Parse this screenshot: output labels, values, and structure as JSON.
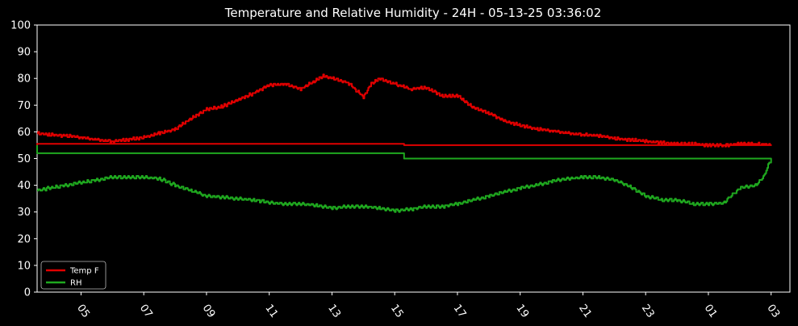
{
  "chart_data": {
    "type": "line",
    "title": "Temperature and Relative Humidity - 24H - 05-13-25 03:36:02",
    "xlabel": "",
    "ylabel": "",
    "ylim": [
      0,
      100
    ],
    "xlim": [
      "05-12-25 03:36",
      "05-13-25 03:36"
    ],
    "x_unit": "time of day (hours)",
    "yticks": [
      0,
      10,
      20,
      30,
      40,
      50,
      60,
      70,
      80,
      90,
      100
    ],
    "xticks": [
      "05",
      "07",
      "09",
      "11",
      "13",
      "15",
      "17",
      "19",
      "21",
      "23",
      "01",
      "03"
    ],
    "xtick_times": [
      "05:00",
      "07:00",
      "09:00",
      "11:00",
      "13:00",
      "15:00",
      "17:00",
      "19:00",
      "21:00",
      "23:00",
      "01:00",
      "03:00"
    ],
    "grid": true,
    "legend_position": "bottom-left",
    "background": "#000000",
    "series": [
      {
        "name": "Temp F",
        "color": "#e00000",
        "x": [
          "03:36",
          "04:00",
          "04:30",
          "05:00",
          "05:30",
          "06:00",
          "06:30",
          "07:00",
          "07:30",
          "08:00",
          "08:30",
          "09:00",
          "09:30",
          "10:00",
          "10:30",
          "11:00",
          "11:30",
          "12:00",
          "12:30",
          "12:45",
          "13:00",
          "13:30",
          "14:00",
          "14:15",
          "14:30",
          "15:00",
          "15:30",
          "16:00",
          "16:30",
          "17:00",
          "17:30",
          "18:00",
          "18:30",
          "19:00",
          "19:30",
          "20:00",
          "20:30",
          "21:00",
          "21:30",
          "22:00",
          "22:30",
          "23:00",
          "23:30",
          "00:00",
          "00:30",
          "01:00",
          "01:30",
          "02:00",
          "02:30",
          "03:00",
          "03:36"
        ],
        "y": [
          59.5,
          59,
          58.5,
          58,
          57,
          56.5,
          57,
          58,
          59.5,
          61,
          65,
          68.5,
          69.5,
          72,
          74.5,
          77.5,
          78,
          76,
          79.5,
          81,
          80,
          78.5,
          73,
          78,
          80,
          78,
          76,
          76.5,
          73.5,
          73.5,
          69,
          67,
          64,
          62.5,
          61,
          60.5,
          59.5,
          59,
          58.5,
          57.5,
          57,
          56.5,
          56,
          55.5,
          55.5,
          55,
          55,
          55.5,
          55.5,
          55,
          55
        ]
      },
      {
        "name": "RH",
        "color": "#1fa81f",
        "x": [
          "03:36",
          "04:00",
          "04:30",
          "05:00",
          "05:30",
          "06:00",
          "06:30",
          "07:00",
          "07:30",
          "08:00",
          "08:30",
          "09:00",
          "09:30",
          "10:00",
          "10:30",
          "11:00",
          "11:30",
          "12:00",
          "12:30",
          "13:00",
          "13:30",
          "14:00",
          "14:30",
          "15:00",
          "15:30",
          "16:00",
          "16:30",
          "17:00",
          "17:30",
          "18:00",
          "18:30",
          "19:00",
          "19:30",
          "20:00",
          "20:30",
          "21:00",
          "21:30",
          "22:00",
          "22:30",
          "23:00",
          "23:30",
          "00:00",
          "00:30",
          "01:00",
          "01:30",
          "02:00",
          "02:30",
          "02:45",
          "03:00",
          "03:36"
        ],
        "y": [
          38,
          39,
          40,
          41,
          42,
          43,
          43,
          43,
          42.5,
          40,
          38,
          36,
          35.5,
          35,
          34.5,
          33.5,
          33,
          33,
          32.5,
          31.5,
          32,
          32,
          31.5,
          30.5,
          31,
          32,
          32,
          33,
          34.5,
          36,
          37.5,
          39,
          40,
          41.5,
          42.5,
          43,
          43,
          42,
          39.5,
          36,
          34.5,
          34.5,
          33,
          33,
          33.5,
          39,
          40,
          43,
          50,
          55
        ]
      }
    ]
  }
}
